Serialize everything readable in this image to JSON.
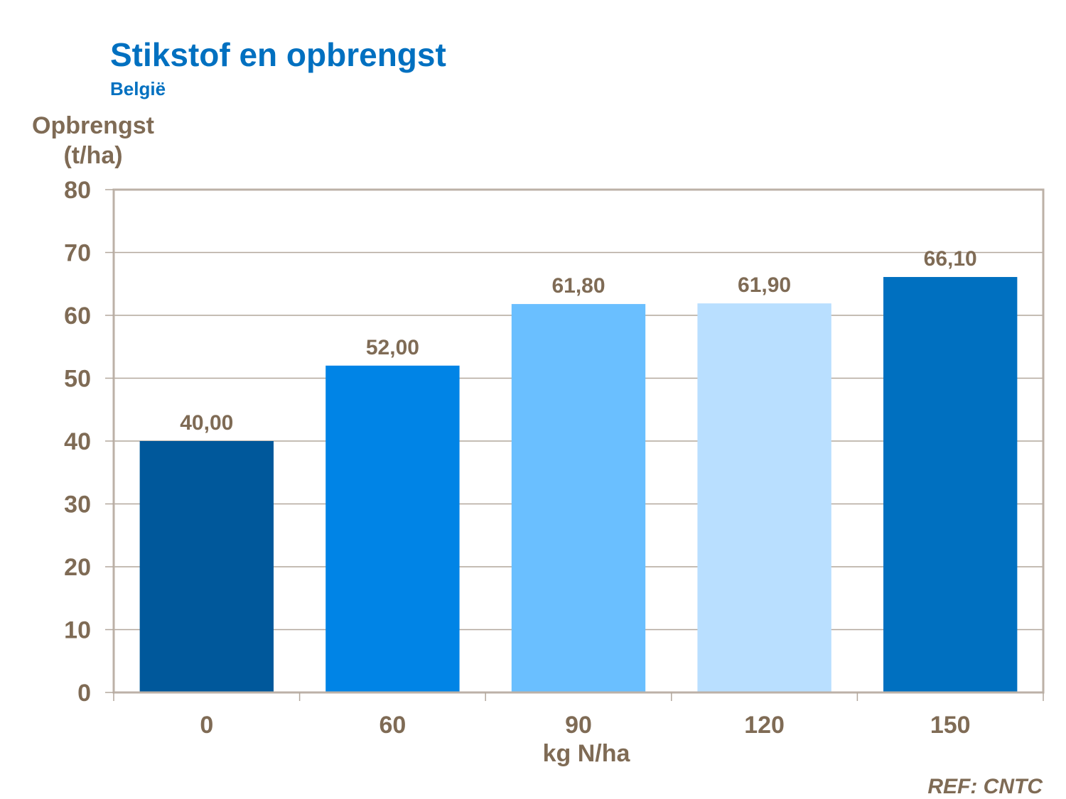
{
  "chart_data": {
    "type": "bar",
    "title": "Stikstof en opbrengst",
    "subtitle": "België",
    "ylabel_line1": "Opbrengst",
    "ylabel_line2": "(t/ha)",
    "xlabel": "kg N/ha",
    "categories": [
      "0",
      "60",
      "90",
      "120",
      "150"
    ],
    "values": [
      40.0,
      52.0,
      61.8,
      61.9,
      66.1
    ],
    "data_labels": [
      "40,00",
      "52,00",
      "61,80",
      "61,90",
      "66,10"
    ],
    "bar_colors": [
      "#00589B",
      "#0084E6",
      "#6ABFFF",
      "#B9DFFF",
      "#0070C0"
    ],
    "ylim": [
      0,
      80
    ],
    "yticks": [
      0,
      10,
      20,
      30,
      40,
      50,
      60,
      70,
      80
    ],
    "grid": true,
    "legend": "none",
    "source": "REF: CNTC"
  }
}
